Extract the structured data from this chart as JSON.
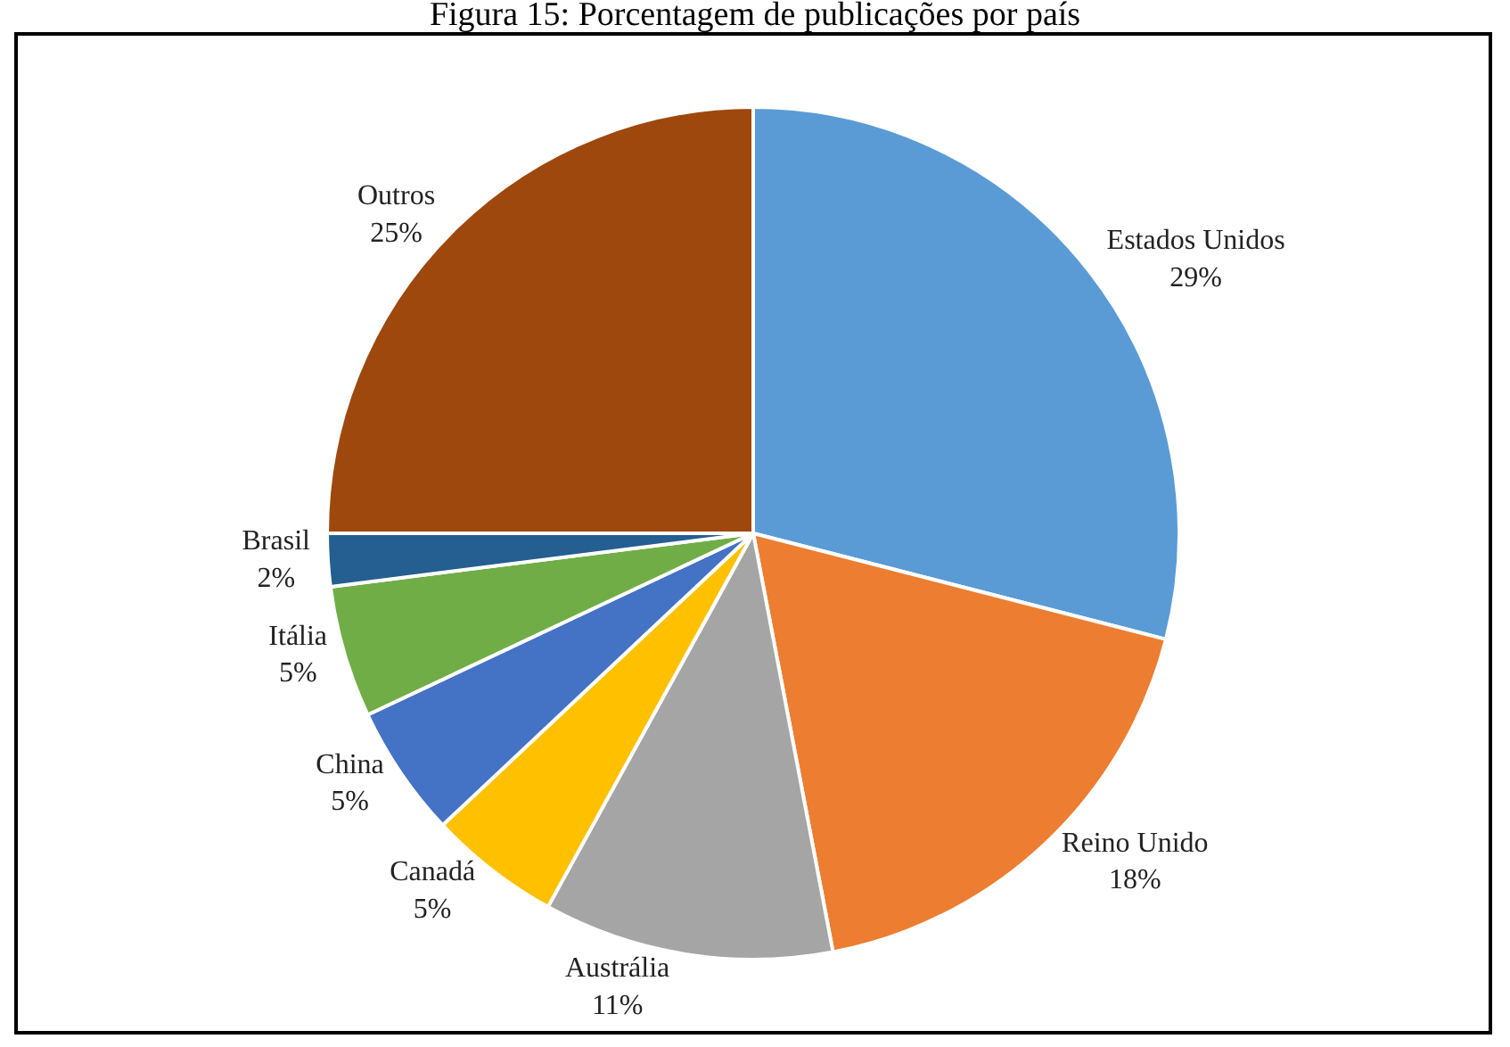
{
  "chart_data": {
    "type": "pie",
    "title": "Figura 15: Porcentagem de publicações por país",
    "categories": [
      "Estados Unidos",
      "Reino Unido",
      "Austrália",
      "Canadá",
      "China",
      "Itália",
      "Brasil",
      "Outros"
    ],
    "values": [
      29,
      18,
      11,
      5,
      5,
      5,
      2,
      25
    ],
    "value_labels": [
      "29%",
      "18%",
      "11%",
      "5%",
      "5%",
      "5%",
      "2%",
      "25%"
    ],
    "colors": [
      "#5b9bd5",
      "#ed7d31",
      "#a5a5a5",
      "#ffc000",
      "#4472c4",
      "#70ad47",
      "#255e91",
      "#9e480e"
    ],
    "legend": false
  }
}
